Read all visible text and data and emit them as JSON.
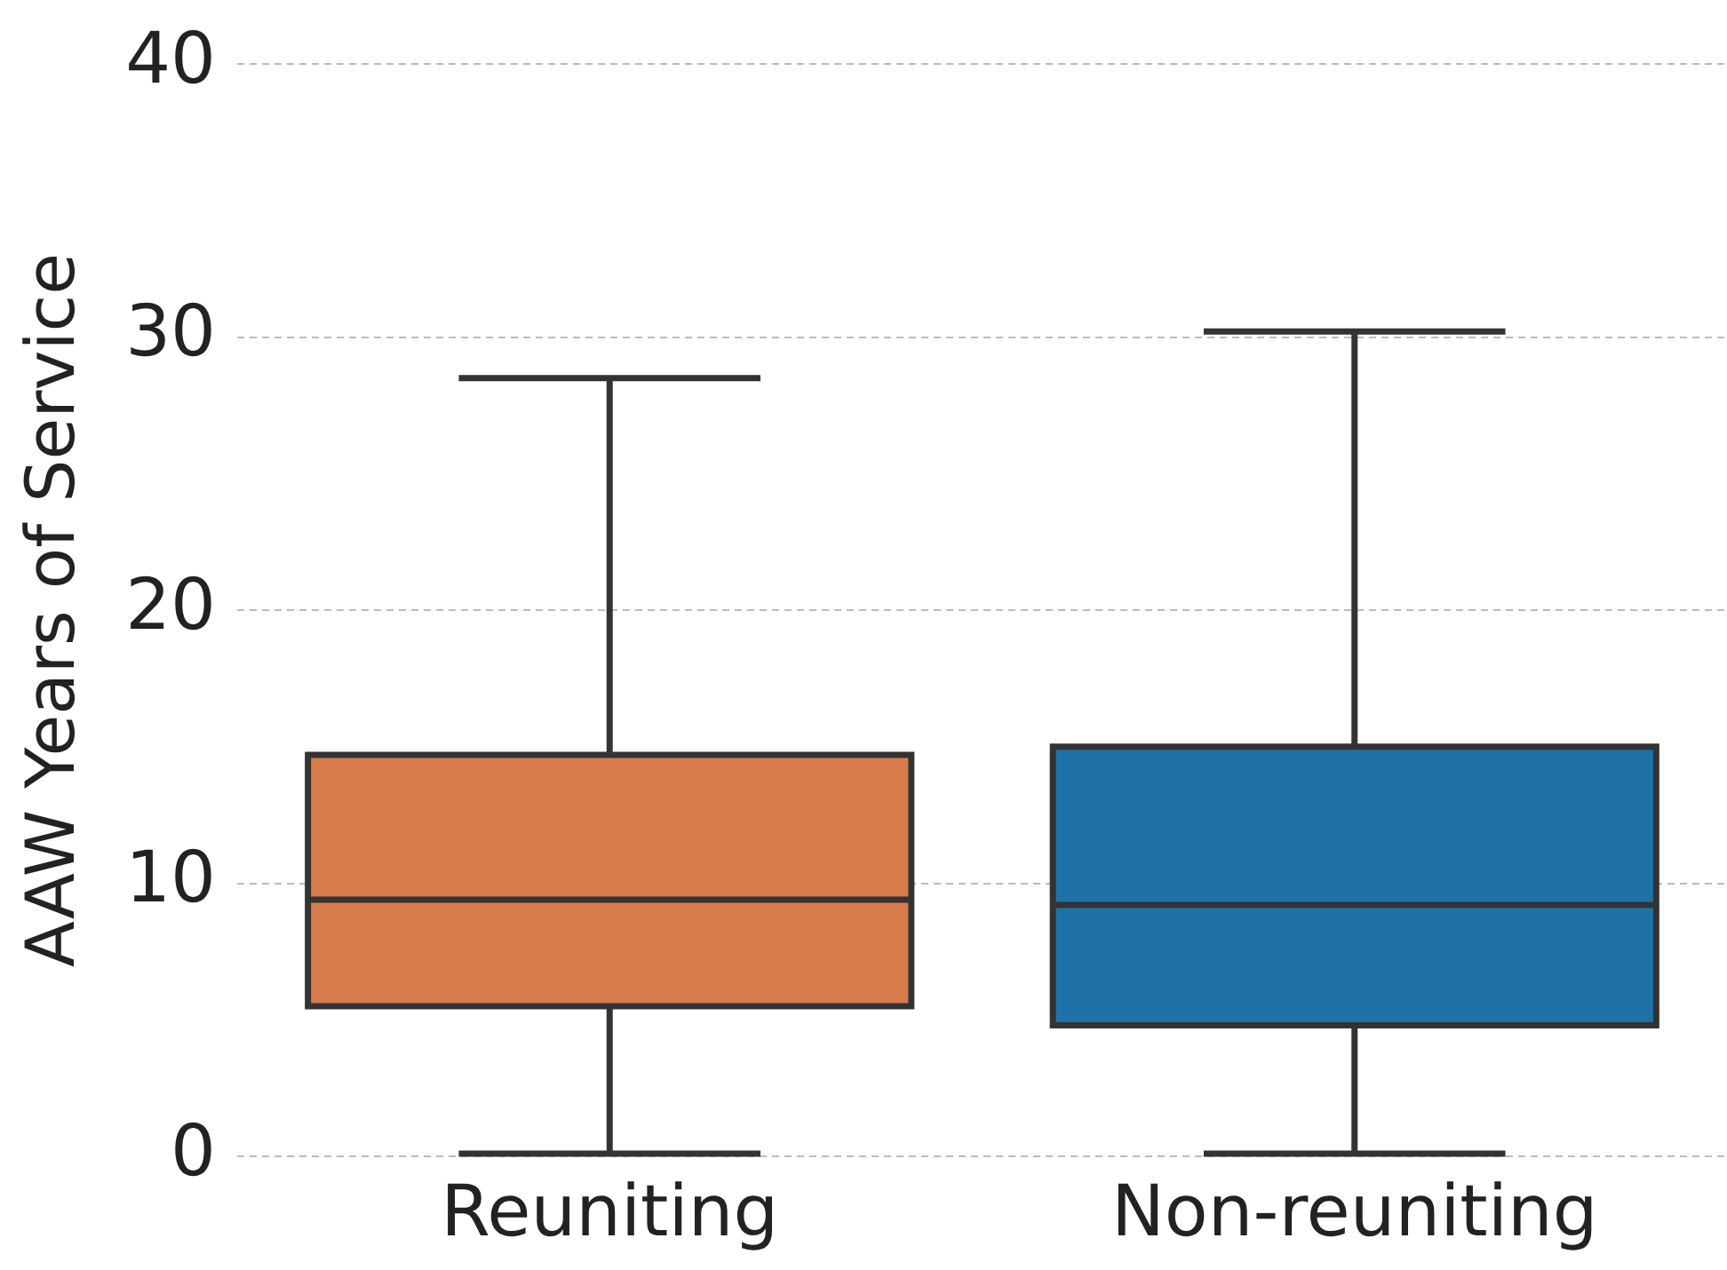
{
  "chart_data": {
    "type": "box",
    "ylabel": "AAW Years of Service",
    "categories": [
      "Reuniting",
      "Non-reuniting"
    ],
    "colors": [
      "#d67d4b",
      "#1f72a8"
    ],
    "boxes": [
      {
        "low": 0.1,
        "q1": 5.5,
        "median": 9.4,
        "q3": 14.7,
        "high": 28.5
      },
      {
        "low": 0.1,
        "q1": 4.8,
        "median": 9.2,
        "q3": 15.0,
        "high": 30.2
      }
    ],
    "ylim": [
      0,
      40
    ],
    "yticks": [
      0,
      10,
      20,
      30,
      40
    ],
    "grid": "y"
  }
}
